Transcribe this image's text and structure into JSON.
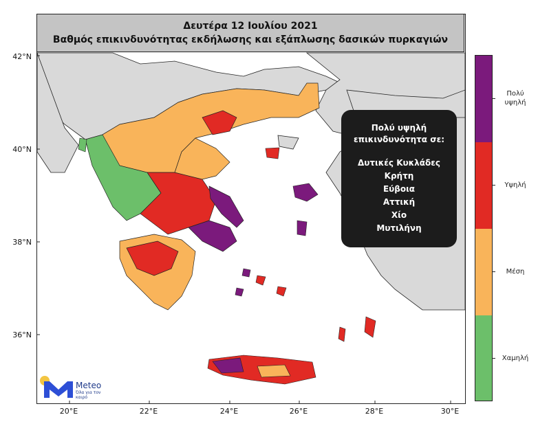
{
  "header": {
    "date": "Δευτέρα 12 Ιουλίου 2021",
    "subtitle": "Βαθμός επικινδυνότητας εκδήλωσης και εξάπλωσης δασικών πυρκαγιών"
  },
  "axes": {
    "latitude_labels": [
      "42°N",
      "40°N",
      "38°N",
      "36°N"
    ],
    "longitude_labels": [
      "20°E",
      "22°E",
      "24°E",
      "26°E",
      "28°E",
      "30°E"
    ]
  },
  "info_box": {
    "title_line1": "Πολύ υψηλή",
    "title_line2": "επικινδυνότητα σε:",
    "areas": [
      "Δυτικές Κυκλάδες",
      "Κρήτη",
      "Εύβοια",
      "Αττική",
      "Χίο",
      "Μυτιλήνη"
    ]
  },
  "legend": {
    "levels": [
      {
        "label_line1": "Πολύ",
        "label_line2": "υψηλή",
        "color": "#7b1a7c"
      },
      {
        "label_line1": "Υψηλή",
        "label_line2": "",
        "color": "#e12a24"
      },
      {
        "label_line1": "Μέση",
        "label_line2": "",
        "color": "#f9b45a"
      },
      {
        "label_line1": "Χαμηλή",
        "label_line2": "",
        "color": "#6cbf6a"
      }
    ]
  },
  "logo": {
    "brand": "Meteo",
    "tagline": "Όλα για τον καιρό"
  },
  "colors": {
    "land_neighbor": "#d9d9d9",
    "sea": "#ffffff",
    "very_high": "#7b1a7c",
    "high": "#e12a24",
    "medium": "#f9b45a",
    "low": "#6cbf6a",
    "title_bg": "#c4c4c4",
    "info_bg": "#1c1c1c"
  }
}
